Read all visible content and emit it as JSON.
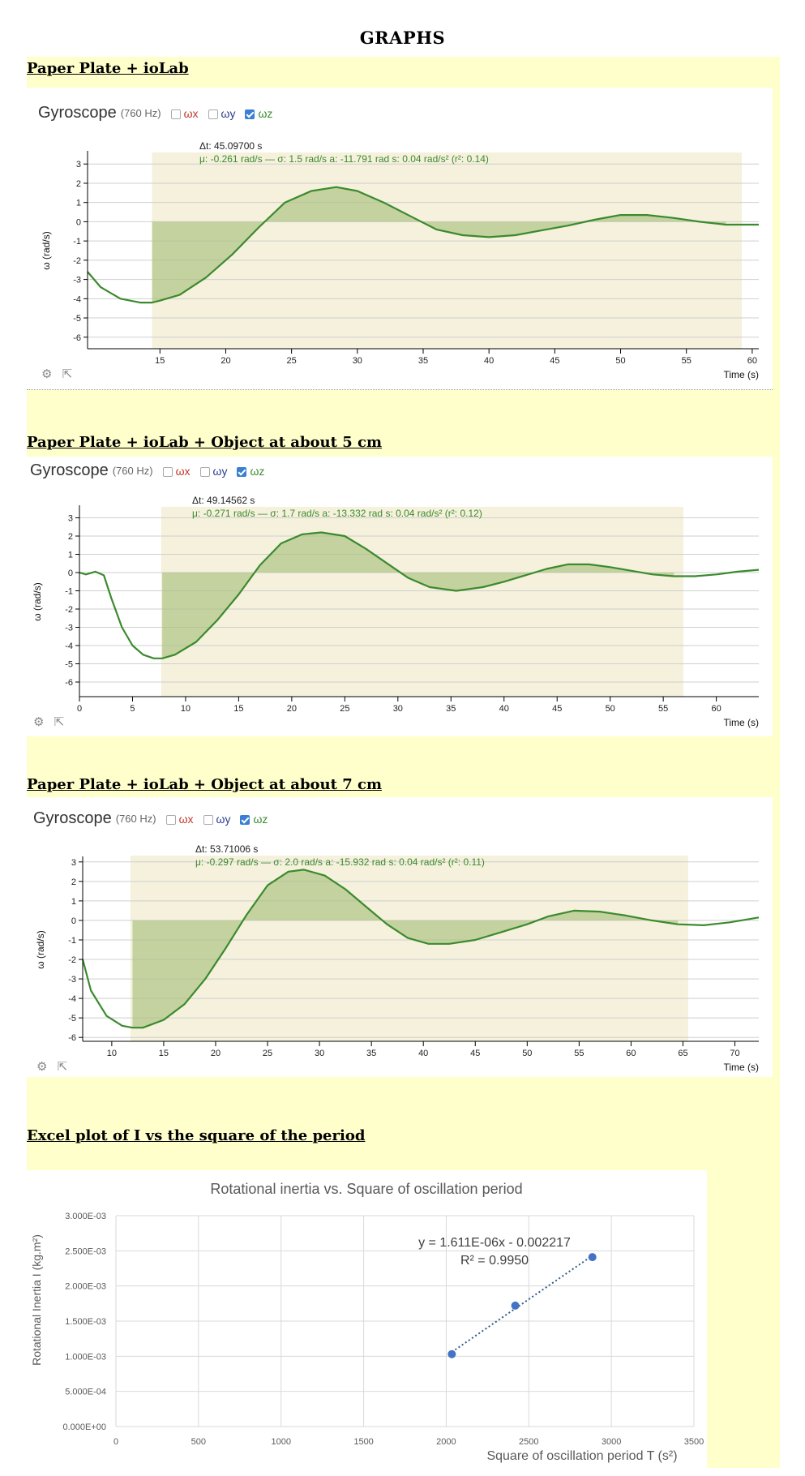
{
  "page_title": "GRAPHS",
  "sections": [
    {
      "heading": "Paper Plate + ioLab"
    },
    {
      "heading": "Paper Plate + ioLab + Object at about 5 cm"
    },
    {
      "heading": "Paper Plate + ioLab + Object at about 7 cm"
    },
    {
      "heading": "Excel plot of I vs the square of the period"
    }
  ],
  "gyro": {
    "name": "Gyroscope",
    "rate": "(760 Hz)",
    "wx": "ωx",
    "wy": "ωy",
    "wz": "ωz",
    "settings_icon": "gear-icon",
    "export_icon": "external-link-icon"
  },
  "colors": {
    "highlight": "#ffffcc",
    "series": "#3b8a2e",
    "fill": "#a9c27f",
    "band": "#f5f1dc",
    "excel_point": "#4472c4"
  },
  "chart_data": [
    {
      "type": "line",
      "title": "Gyroscope (760 Hz)",
      "xlabel": "Time (s)",
      "ylabel": "ω (rad/s)",
      "xlim": [
        9.5,
        60.5
      ],
      "ylim": [
        -6.6,
        3.6
      ],
      "xticks": [
        15,
        20,
        25,
        30,
        35,
        40,
        45,
        50,
        55,
        60
      ],
      "yticks": [
        3,
        2,
        1,
        0,
        -1,
        -2,
        -3,
        -4,
        -5,
        -6
      ],
      "selection": [
        14.4,
        59.2
      ],
      "dt_label": "Δt: 45.09700 s",
      "stats_label": "μ: -0.261 rad/s — σ: 1.5 rad/s   a: -11.791 rad   s: 0.04 rad/s² (r²: 0.14)",
      "series": [
        {
          "name": "ωz",
          "x": [
            9.5,
            10.5,
            12,
            13.5,
            14.4,
            15,
            16.5,
            18.5,
            20.5,
            22.5,
            24.5,
            26.5,
            28.4,
            30,
            32,
            34,
            36,
            38,
            40,
            42,
            44,
            46,
            48,
            50,
            52,
            54,
            56,
            58,
            60.5
          ],
          "y": [
            -2.6,
            -3.4,
            -4.0,
            -4.2,
            -4.2,
            -4.1,
            -3.8,
            -2.9,
            -1.7,
            -0.3,
            1.0,
            1.6,
            1.8,
            1.6,
            1.0,
            0.3,
            -0.4,
            -0.7,
            -0.8,
            -0.7,
            -0.45,
            -0.2,
            0.1,
            0.35,
            0.35,
            0.2,
            0.0,
            -0.15,
            -0.15
          ]
        }
      ]
    },
    {
      "type": "line",
      "title": "Gyroscope (760 Hz)",
      "xlabel": "Time (s)",
      "ylabel": "ω (rad/s)",
      "xlim": [
        0,
        64
      ],
      "ylim": [
        -6.8,
        3.6
      ],
      "xticks": [
        0,
        5,
        10,
        15,
        20,
        25,
        30,
        35,
        40,
        45,
        50,
        55,
        60
      ],
      "yticks": [
        3,
        2,
        1,
        0,
        -1,
        -2,
        -3,
        -4,
        -5,
        -6
      ],
      "selection": [
        7.7,
        56.9
      ],
      "dt_label": "Δt: 49.14562 s",
      "stats_label": "μ: -0.271 rad/s — σ: 1.7 rad/s   a: -13.332 rad   s: 0.04 rad/s² (r²: 0.12)",
      "series": [
        {
          "name": "ωz",
          "x": [
            0,
            0.6,
            1.5,
            2.3,
            3,
            4,
            5,
            6,
            7,
            7.8,
            9,
            11,
            13,
            15,
            17,
            19,
            21,
            22.8,
            25,
            27,
            29,
            31,
            33,
            35.5,
            38,
            40,
            42,
            44,
            46,
            48,
            50,
            52,
            54,
            56,
            58,
            60,
            62,
            64
          ],
          "y": [
            0,
            -0.1,
            0.05,
            -0.15,
            -1.4,
            -3.0,
            -4.0,
            -4.5,
            -4.7,
            -4.7,
            -4.5,
            -3.8,
            -2.6,
            -1.2,
            0.4,
            1.6,
            2.1,
            2.2,
            2.0,
            1.3,
            0.5,
            -0.3,
            -0.8,
            -1.0,
            -0.8,
            -0.5,
            -0.15,
            0.2,
            0.45,
            0.45,
            0.3,
            0.1,
            -0.1,
            -0.2,
            -0.2,
            -0.1,
            0.05,
            0.15
          ]
        }
      ]
    },
    {
      "type": "line",
      "title": "Gyroscope (760 Hz)",
      "xlabel": "Time (s)",
      "ylabel": "ω (rad/s)",
      "xlim": [
        7.2,
        72.3
      ],
      "ylim": [
        -6.2,
        3.2
      ],
      "xticks": [
        10,
        15,
        20,
        25,
        30,
        35,
        40,
        45,
        50,
        55,
        60,
        65,
        70
      ],
      "yticks": [
        3,
        2,
        1,
        0,
        -1,
        -2,
        -3,
        -4,
        -5,
        -6
      ],
      "selection": [
        11.8,
        65.5
      ],
      "dt_label": "Δt: 53.71006 s",
      "stats_label": "μ: -0.297 rad/s — σ: 2.0 rad/s   a: -15.932 rad   s: 0.04 rad/s² (r²: 0.11)",
      "series": [
        {
          "name": "ωz",
          "x": [
            7.2,
            8,
            9.5,
            11,
            12,
            13,
            15,
            17,
            19,
            21,
            23,
            25,
            27,
            28.5,
            30.5,
            32.5,
            34.5,
            36.5,
            38.5,
            40.5,
            42.5,
            45,
            47.5,
            50,
            52,
            54.5,
            57,
            59.5,
            62,
            64.5,
            67,
            69.5,
            72.3
          ],
          "y": [
            -2.0,
            -3.6,
            -4.9,
            -5.4,
            -5.5,
            -5.5,
            -5.1,
            -4.3,
            -3.0,
            -1.4,
            0.3,
            1.8,
            2.5,
            2.6,
            2.3,
            1.6,
            0.7,
            -0.2,
            -0.9,
            -1.2,
            -1.2,
            -1.0,
            -0.6,
            -0.2,
            0.2,
            0.5,
            0.45,
            0.25,
            0.0,
            -0.2,
            -0.25,
            -0.1,
            0.15
          ]
        }
      ]
    },
    {
      "type": "scatter",
      "title": "Rotational inertia vs. Square of oscillation period",
      "xlabel": "Square of oscillation period T (s²)",
      "ylabel": "Rotational Inertia I (kg.m²)",
      "xlim": [
        0,
        3500
      ],
      "ylim": [
        0,
        0.003
      ],
      "xticks": [
        0,
        500,
        1000,
        1500,
        2000,
        2500,
        3000,
        3500
      ],
      "xtick_labels": [
        "0",
        "500",
        "1000",
        "1500",
        "2000",
        "2500",
        "3000",
        "3500"
      ],
      "yticks": [
        0,
        0.0005,
        0.001,
        0.0015,
        0.002,
        0.0025,
        0.003
      ],
      "ytick_labels": [
        "0.000E+00",
        "5.000E-04",
        "1.000E-03",
        "1.500E-03",
        "2.000E-03",
        "2.500E-03",
        "3.000E-03"
      ],
      "series": [
        {
          "name": "I",
          "x": [
            2034,
            2418,
            2885
          ],
          "y": [
            0.00103,
            0.00172,
            0.00241
          ]
        }
      ],
      "trendline": {
        "slope": 1.611e-06,
        "intercept": -0.002217,
        "x_range": [
          2034,
          2885
        ]
      },
      "equation_label": "y = 1.611E-06x - 0.002217",
      "r2_label": "R² = 0.9950"
    }
  ]
}
